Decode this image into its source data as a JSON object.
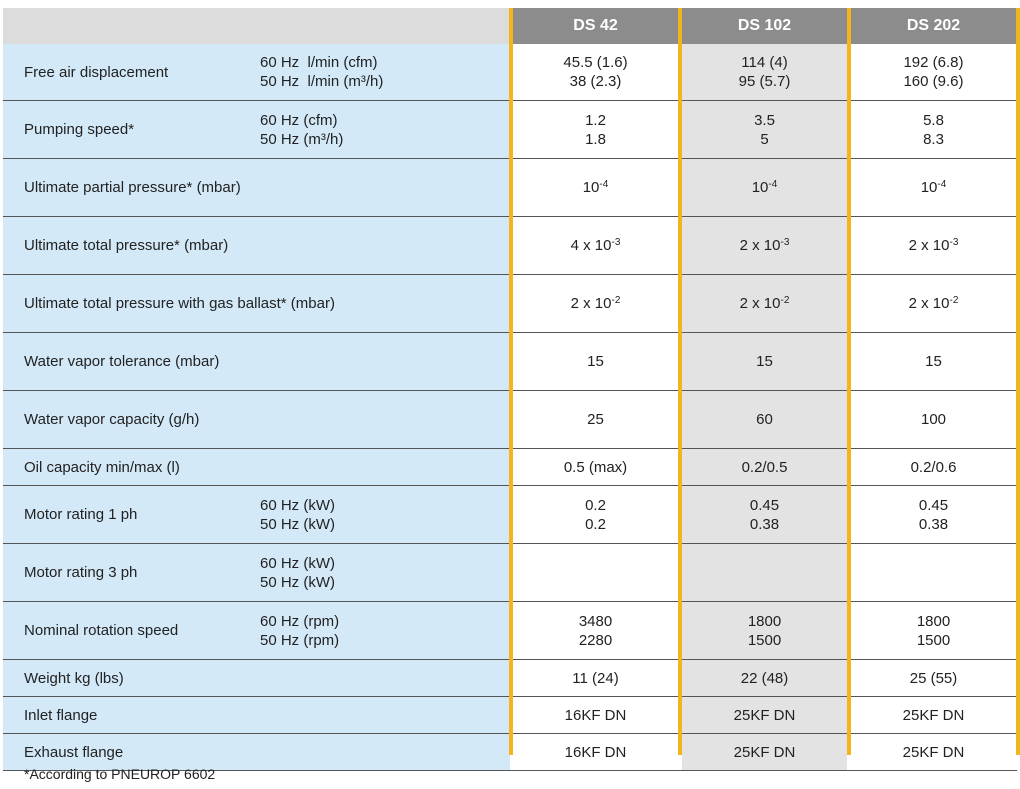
{
  "columns": [
    "DS 42",
    "DS 102",
    "DS 202"
  ],
  "rows": [
    {
      "label": "Free air displacement",
      "units": [
        "60 Hz  l/min (cfm)",
        "50 Hz  l/min (m³/h)"
      ],
      "values": [
        [
          "45.5 (1.6)",
          "38 (2.3)"
        ],
        [
          "114 (4)",
          "95 (5.7)"
        ],
        [
          "192 (6.8)",
          "160 (9.6)"
        ]
      ]
    },
    {
      "label": "Pumping speed*",
      "units": [
        "60 Hz (cfm)",
        "50 Hz (m³/h)"
      ],
      "values": [
        [
          "1.2",
          "1.8"
        ],
        [
          "3.5",
          "5"
        ],
        [
          "5.8",
          "8.3"
        ]
      ]
    },
    {
      "label": "Ultimate partial pressure* (mbar)",
      "units": [],
      "values": [
        [
          "10-4"
        ],
        [
          "10-4"
        ],
        [
          "10-4"
        ]
      ]
    },
    {
      "label": "Ultimate total pressure* (mbar)",
      "units": [],
      "values": [
        [
          "4 x 10-3"
        ],
        [
          "2 x 10-3"
        ],
        [
          "2 x 10-3"
        ]
      ]
    },
    {
      "label": "Ultimate total pressure with gas ballast* (mbar)",
      "units": [],
      "values": [
        [
          "2 x 10-2"
        ],
        [
          "2 x 10-2"
        ],
        [
          "2 x 10-2"
        ]
      ]
    },
    {
      "label": "Water vapor tolerance (mbar)",
      "units": [],
      "values": [
        [
          "15"
        ],
        [
          "15"
        ],
        [
          "15"
        ]
      ]
    },
    {
      "label": "Water vapor capacity (g/h)",
      "units": [],
      "values": [
        [
          "25"
        ],
        [
          "60"
        ],
        [
          "100"
        ]
      ]
    },
    {
      "label": "Oil capacity min/max (l)",
      "units": [],
      "values": [
        [
          "0.5 (max)"
        ],
        [
          "0.2/0.5"
        ],
        [
          "0.2/0.6"
        ]
      ]
    },
    {
      "label": "Motor rating 1 ph",
      "units": [
        "60 Hz (kW)",
        "50 Hz (kW)"
      ],
      "values": [
        [
          "0.2",
          "0.2"
        ],
        [
          "0.45",
          "0.38"
        ],
        [
          "0.45",
          "0.38"
        ]
      ]
    },
    {
      "label": "Motor rating 3 ph",
      "units": [
        "60 Hz (kW)",
        "50 Hz (kW)"
      ],
      "values": [
        [],
        [],
        []
      ]
    },
    {
      "label": "Nominal rotation speed",
      "units": [
        "60 Hz (rpm)",
        "50 Hz (rpm)"
      ],
      "values": [
        [
          "3480",
          "2280"
        ],
        [
          "1800",
          "1500"
        ],
        [
          "1800",
          "1500"
        ]
      ]
    },
    {
      "label": "Weight kg (lbs)",
      "units": [],
      "values": [
        [
          "11 (24)"
        ],
        [
          "22 (48)"
        ],
        [
          "25 (55)"
        ]
      ]
    },
    {
      "label": "Inlet flange",
      "units": [],
      "values": [
        [
          "16KF DN"
        ],
        [
          "25KF DN"
        ],
        [
          "25KF DN"
        ]
      ]
    },
    {
      "label": "Exhaust flange",
      "units": [],
      "values": [
        [
          "16KF DN"
        ],
        [
          "25KF DN"
        ],
        [
          "25KF DN"
        ]
      ]
    }
  ],
  "footnote": "*According to PNEUROP 6602",
  "colors": {
    "header": "#8c8c8c",
    "label_bg": "#d3e9f8",
    "accent": "#f2b61c",
    "shade": "#e3e3e3"
  }
}
